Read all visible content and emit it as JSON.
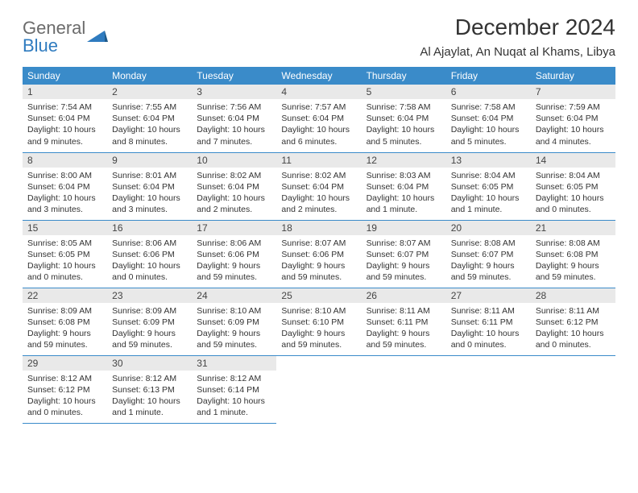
{
  "logo": {
    "top": "General",
    "bottom": "Blue"
  },
  "title": "December 2024",
  "subtitle": "Al Ajaylat, An Nuqat al Khams, Libya",
  "colors": {
    "header_bg": "#3a8bc9",
    "header_text": "#ffffff",
    "daynum_bg": "#e9e9e9",
    "rule": "#3a8bc9",
    "logo_gray": "#6b6b6b",
    "logo_blue": "#2f7bbf"
  },
  "weekdays": [
    "Sunday",
    "Monday",
    "Tuesday",
    "Wednesday",
    "Thursday",
    "Friday",
    "Saturday"
  ],
  "days": [
    {
      "n": 1,
      "sr": "7:54 AM",
      "ss": "6:04 PM",
      "dl": "10 hours and 9 minutes."
    },
    {
      "n": 2,
      "sr": "7:55 AM",
      "ss": "6:04 PM",
      "dl": "10 hours and 8 minutes."
    },
    {
      "n": 3,
      "sr": "7:56 AM",
      "ss": "6:04 PM",
      "dl": "10 hours and 7 minutes."
    },
    {
      "n": 4,
      "sr": "7:57 AM",
      "ss": "6:04 PM",
      "dl": "10 hours and 6 minutes."
    },
    {
      "n": 5,
      "sr": "7:58 AM",
      "ss": "6:04 PM",
      "dl": "10 hours and 5 minutes."
    },
    {
      "n": 6,
      "sr": "7:58 AM",
      "ss": "6:04 PM",
      "dl": "10 hours and 5 minutes."
    },
    {
      "n": 7,
      "sr": "7:59 AM",
      "ss": "6:04 PM",
      "dl": "10 hours and 4 minutes."
    },
    {
      "n": 8,
      "sr": "8:00 AM",
      "ss": "6:04 PM",
      "dl": "10 hours and 3 minutes."
    },
    {
      "n": 9,
      "sr": "8:01 AM",
      "ss": "6:04 PM",
      "dl": "10 hours and 3 minutes."
    },
    {
      "n": 10,
      "sr": "8:02 AM",
      "ss": "6:04 PM",
      "dl": "10 hours and 2 minutes."
    },
    {
      "n": 11,
      "sr": "8:02 AM",
      "ss": "6:04 PM",
      "dl": "10 hours and 2 minutes."
    },
    {
      "n": 12,
      "sr": "8:03 AM",
      "ss": "6:04 PM",
      "dl": "10 hours and 1 minute."
    },
    {
      "n": 13,
      "sr": "8:04 AM",
      "ss": "6:05 PM",
      "dl": "10 hours and 1 minute."
    },
    {
      "n": 14,
      "sr": "8:04 AM",
      "ss": "6:05 PM",
      "dl": "10 hours and 0 minutes."
    },
    {
      "n": 15,
      "sr": "8:05 AM",
      "ss": "6:05 PM",
      "dl": "10 hours and 0 minutes."
    },
    {
      "n": 16,
      "sr": "8:06 AM",
      "ss": "6:06 PM",
      "dl": "10 hours and 0 minutes."
    },
    {
      "n": 17,
      "sr": "8:06 AM",
      "ss": "6:06 PM",
      "dl": "9 hours and 59 minutes."
    },
    {
      "n": 18,
      "sr": "8:07 AM",
      "ss": "6:06 PM",
      "dl": "9 hours and 59 minutes."
    },
    {
      "n": 19,
      "sr": "8:07 AM",
      "ss": "6:07 PM",
      "dl": "9 hours and 59 minutes."
    },
    {
      "n": 20,
      "sr": "8:08 AM",
      "ss": "6:07 PM",
      "dl": "9 hours and 59 minutes."
    },
    {
      "n": 21,
      "sr": "8:08 AM",
      "ss": "6:08 PM",
      "dl": "9 hours and 59 minutes."
    },
    {
      "n": 22,
      "sr": "8:09 AM",
      "ss": "6:08 PM",
      "dl": "9 hours and 59 minutes."
    },
    {
      "n": 23,
      "sr": "8:09 AM",
      "ss": "6:09 PM",
      "dl": "9 hours and 59 minutes."
    },
    {
      "n": 24,
      "sr": "8:10 AM",
      "ss": "6:09 PM",
      "dl": "9 hours and 59 minutes."
    },
    {
      "n": 25,
      "sr": "8:10 AM",
      "ss": "6:10 PM",
      "dl": "9 hours and 59 minutes."
    },
    {
      "n": 26,
      "sr": "8:11 AM",
      "ss": "6:11 PM",
      "dl": "9 hours and 59 minutes."
    },
    {
      "n": 27,
      "sr": "8:11 AM",
      "ss": "6:11 PM",
      "dl": "10 hours and 0 minutes."
    },
    {
      "n": 28,
      "sr": "8:11 AM",
      "ss": "6:12 PM",
      "dl": "10 hours and 0 minutes."
    },
    {
      "n": 29,
      "sr": "8:12 AM",
      "ss": "6:12 PM",
      "dl": "10 hours and 0 minutes."
    },
    {
      "n": 30,
      "sr": "8:12 AM",
      "ss": "6:13 PM",
      "dl": "10 hours and 1 minute."
    },
    {
      "n": 31,
      "sr": "8:12 AM",
      "ss": "6:14 PM",
      "dl": "10 hours and 1 minute."
    }
  ],
  "labels": {
    "sunrise": "Sunrise:",
    "sunset": "Sunset:",
    "daylight": "Daylight:"
  }
}
